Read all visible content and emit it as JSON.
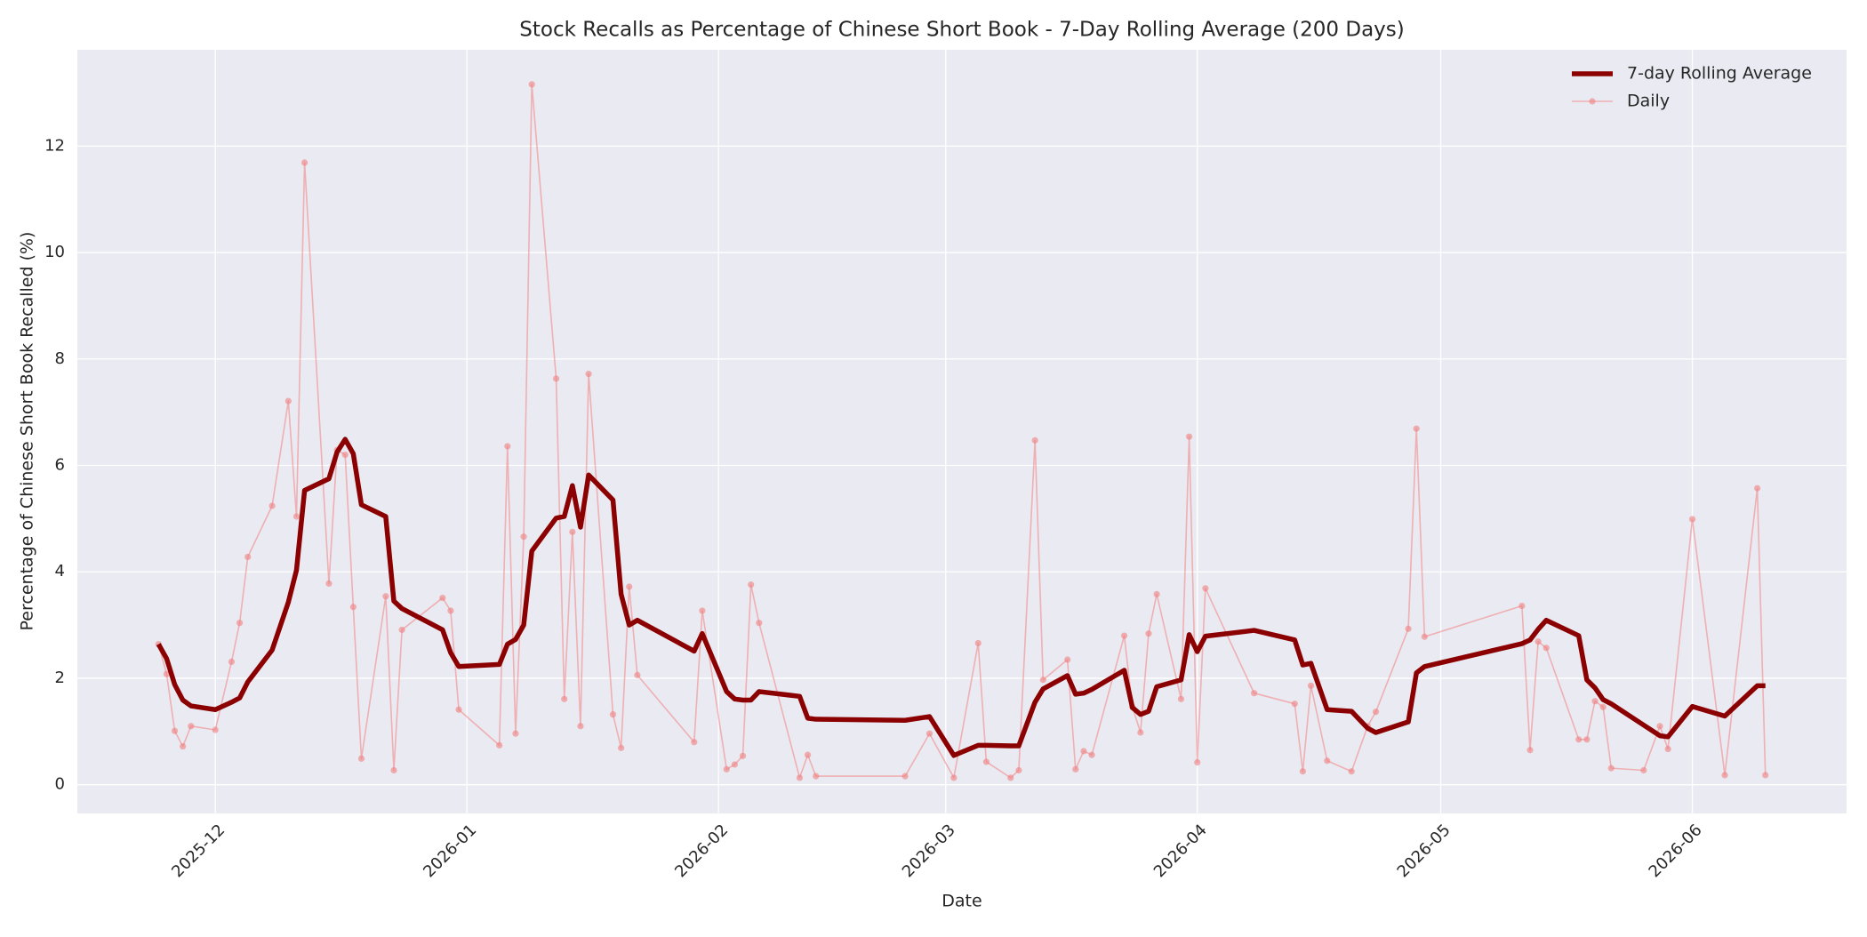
{
  "chart_data": {
    "type": "line",
    "title": "Stock Recalls as Percentage of Chinese Short Book - 7-Day Rolling Average (200 Days)",
    "x_label": "Date",
    "y_label": "Percentage of Chinese Short Book Recalled (%)",
    "x": [
      "2025-11-24",
      "2025-11-25",
      "2025-11-26",
      "2025-11-27",
      "2025-11-28",
      "2025-12-01",
      "2025-12-03",
      "2025-12-04",
      "2025-12-05",
      "2025-12-08",
      "2025-12-10",
      "2025-12-11",
      "2025-12-12",
      "2025-12-15",
      "2025-12-16",
      "2025-12-17",
      "2025-12-18",
      "2025-12-19",
      "2025-12-22",
      "2025-12-23",
      "2025-12-24",
      "2025-12-29",
      "2025-12-30",
      "2025-12-31",
      "2026-01-05",
      "2026-01-06",
      "2026-01-07",
      "2026-01-08",
      "2026-01-09",
      "2026-01-12",
      "2026-01-13",
      "2026-01-14",
      "2026-01-15",
      "2026-01-16",
      "2026-01-19",
      "2026-01-20",
      "2026-01-21",
      "2026-01-22",
      "2026-01-29",
      "2026-01-30",
      "2026-02-02",
      "2026-02-03",
      "2026-02-04",
      "2026-02-05",
      "2026-02-06",
      "2026-02-11",
      "2026-02-12",
      "2026-02-13",
      "2026-02-24",
      "2026-02-27",
      "2026-03-02",
      "2026-03-05",
      "2026-03-06",
      "2026-03-09",
      "2026-03-10",
      "2026-03-12",
      "2026-03-13",
      "2026-03-16",
      "2026-03-17",
      "2026-03-18",
      "2026-03-19",
      "2026-03-23",
      "2026-03-24",
      "2026-03-25",
      "2026-03-26",
      "2026-03-27",
      "2026-03-30",
      "2026-03-31",
      "2026-04-01",
      "2026-04-02",
      "2026-04-08",
      "2026-04-13",
      "2026-04-14",
      "2026-04-15",
      "2026-04-17",
      "2026-04-20",
      "2026-04-22",
      "2026-04-23",
      "2026-04-27",
      "2026-04-28",
      "2026-04-29",
      "2026-05-11",
      "2026-05-12",
      "2026-05-13",
      "2026-05-14",
      "2026-05-18",
      "2026-05-19",
      "2026-05-20",
      "2026-05-21",
      "2026-05-22",
      "2026-05-26",
      "2026-05-28",
      "2026-05-29",
      "2026-06-01",
      "2026-06-05",
      "2026-06-09",
      "2026-06-10"
    ],
    "series": [
      {
        "name": "7-day Rolling Average",
        "color": "#8b0000",
        "marker": false,
        "values": [
          2.64,
          2.37,
          1.88,
          1.59,
          1.48,
          1.41,
          1.55,
          1.63,
          1.93,
          2.53,
          3.43,
          4.03,
          5.53,
          5.75,
          6.25,
          6.49,
          6.22,
          5.26,
          5.04,
          3.45,
          3.31,
          2.91,
          2.48,
          2.22,
          2.26,
          2.64,
          2.73,
          3.0,
          4.39,
          5.01,
          5.04,
          5.62,
          4.84,
          5.82,
          5.35,
          3.58,
          3.0,
          3.09,
          2.51,
          2.84,
          1.75,
          1.61,
          1.59,
          1.59,
          1.75,
          1.66,
          1.25,
          1.23,
          1.21,
          1.28,
          0.55,
          0.74,
          0.74,
          0.73,
          0.73,
          1.55,
          1.8,
          2.05,
          1.7,
          1.72,
          1.79,
          2.15,
          1.45,
          1.32,
          1.38,
          1.84,
          1.97,
          2.82,
          2.5,
          2.79,
          2.9,
          2.72,
          2.25,
          2.28,
          1.41,
          1.38,
          1.06,
          0.98,
          1.18,
          2.1,
          2.22,
          2.65,
          2.72,
          2.92,
          3.09,
          2.8,
          1.97,
          1.82,
          1.6,
          1.52,
          1.12,
          0.92,
          0.9,
          1.47,
          1.29,
          1.86,
          1.86
        ]
      },
      {
        "name": "Daily",
        "color": "#f08080",
        "marker": true,
        "values": [
          2.64,
          2.08,
          1.01,
          0.72,
          1.1,
          1.03,
          2.31,
          3.04,
          4.28,
          5.24,
          7.21,
          5.04,
          11.69,
          3.78,
          6.29,
          6.2,
          3.34,
          0.49,
          3.54,
          0.27,
          2.91,
          3.51,
          3.27,
          1.41,
          0.74,
          6.36,
          0.96,
          4.66,
          13.16,
          7.63,
          1.61,
          4.75,
          1.1,
          7.72,
          1.32,
          0.69,
          3.72,
          2.06,
          0.8,
          3.27,
          0.29,
          0.38,
          0.54,
          3.76,
          3.04,
          0.13,
          0.56,
          0.16,
          0.16,
          0.96,
          0.13,
          2.66,
          0.43,
          0.13,
          0.27,
          6.47,
          1.97,
          2.35,
          0.29,
          0.63,
          0.56,
          2.8,
          1.46,
          0.98,
          2.84,
          3.58,
          1.61,
          6.54,
          0.42,
          3.69,
          1.72,
          1.52,
          0.25,
          1.86,
          0.45,
          0.25,
          1.1,
          1.37,
          2.93,
          6.69,
          2.78,
          3.36,
          0.65,
          2.69,
          2.57,
          0.85,
          0.85,
          1.57,
          1.46,
          0.31,
          0.27,
          1.1,
          0.67,
          4.99,
          0.18,
          5.57,
          0.18
        ]
      }
    ],
    "xlim": [
      "2025-11-14",
      "2026-06-20"
    ],
    "xticks": [
      "2025-12",
      "2026-01",
      "2026-02",
      "2026-03",
      "2026-04",
      "2026-05",
      "2026-06"
    ],
    "ylim": [
      -0.54,
      13.81
    ],
    "yticks": [
      0,
      2,
      4,
      6,
      8,
      10,
      12
    ],
    "grid": true,
    "legend": "upper right"
  }
}
